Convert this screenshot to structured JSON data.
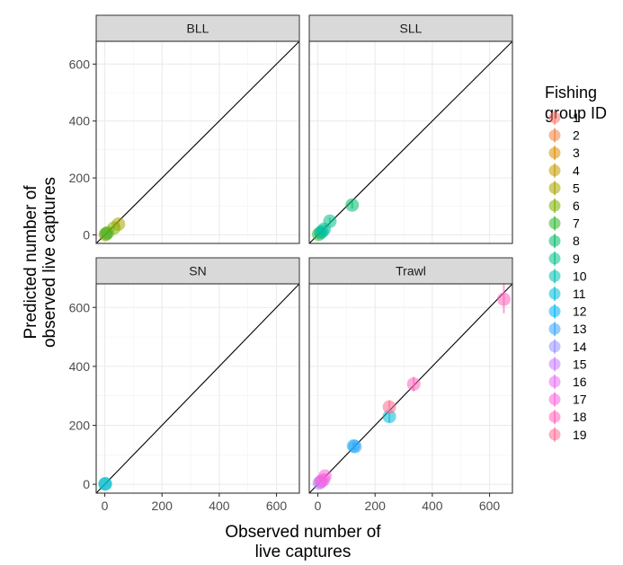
{
  "chart_data": {
    "type": "scatter",
    "facets": [
      "BLL",
      "SLL",
      "SN",
      "Trawl"
    ],
    "xlabel": [
      "Observed number of",
      "live captures"
    ],
    "ylabel": [
      "Predicted number of",
      "observed live captures"
    ],
    "xlim": [
      -30,
      680
    ],
    "ylim": [
      -30,
      680
    ],
    "x_ticks": [
      0,
      200,
      400,
      600
    ],
    "y_ticks": [
      0,
      200,
      400,
      600
    ],
    "reference_line": "y = x",
    "grid": true,
    "legend": {
      "title": [
        "Fishing",
        "group ID"
      ],
      "placement": "right",
      "entries": [
        "1",
        "2",
        "3",
        "4",
        "5",
        "6",
        "7",
        "8",
        "9",
        "10",
        "11",
        "12",
        "13",
        "14",
        "15",
        "16",
        "17",
        "18",
        "19"
      ],
      "colors": [
        "#F8766D",
        "#ED8141",
        "#DB8E00",
        "#C49A00",
        "#A8A400",
        "#7CAE00",
        "#2EB42E",
        "#00BA6A",
        "#00C08B",
        "#00C0B0",
        "#00BCD8",
        "#00B0F6",
        "#35A2FF",
        "#9590FF",
        "#C77CFF",
        "#E76BF3",
        "#FA62DB",
        "#FF62BC",
        "#FF6C91"
      ]
    },
    "facet_points": {
      "BLL": [
        {
          "group": "4",
          "x": 2,
          "y": 1,
          "lo": 0,
          "hi": 4
        },
        {
          "group": "5",
          "x": 48,
          "y": 38,
          "lo": 28,
          "hi": 48
        },
        {
          "group": "6",
          "x": 32,
          "y": 24,
          "lo": 16,
          "hi": 32
        },
        {
          "group": "6",
          "x": 10,
          "y": 8,
          "lo": 4,
          "hi": 12
        },
        {
          "group": "7",
          "x": 5,
          "y": 4,
          "lo": 1,
          "hi": 8
        }
      ],
      "SLL": [
        {
          "group": "7",
          "x": 3,
          "y": 2,
          "lo": 0,
          "hi": 5
        },
        {
          "group": "8",
          "x": 10,
          "y": 8,
          "lo": 4,
          "hi": 12
        },
        {
          "group": "8",
          "x": 120,
          "y": 105,
          "lo": 92,
          "hi": 118
        },
        {
          "group": "9",
          "x": 42,
          "y": 48,
          "lo": 36,
          "hi": 60
        },
        {
          "group": "9",
          "x": 22,
          "y": 20,
          "lo": 13,
          "hi": 27
        },
        {
          "group": "10",
          "x": 15,
          "y": 12,
          "lo": 7,
          "hi": 17
        }
      ],
      "SN": [
        {
          "group": "10",
          "x": 1,
          "y": 1,
          "lo": 0,
          "hi": 3
        },
        {
          "group": "11",
          "x": 2,
          "y": 2,
          "lo": 0,
          "hi": 4
        }
      ],
      "Trawl": [
        {
          "group": "11",
          "x": 250,
          "y": 230,
          "lo": 210,
          "hi": 250
        },
        {
          "group": "12",
          "x": 125,
          "y": 130,
          "lo": 118,
          "hi": 142
        },
        {
          "group": "13",
          "x": 130,
          "y": 128,
          "lo": 116,
          "hi": 140
        },
        {
          "group": "14",
          "x": 5,
          "y": 4,
          "lo": 1,
          "hi": 7
        },
        {
          "group": "15",
          "x": 12,
          "y": 10,
          "lo": 6,
          "hi": 14
        },
        {
          "group": "16",
          "x": 20,
          "y": 15,
          "lo": 10,
          "hi": 20
        },
        {
          "group": "17",
          "x": 25,
          "y": 28,
          "lo": 20,
          "hi": 36
        },
        {
          "group": "17",
          "x": 10,
          "y": 9,
          "lo": 5,
          "hi": 13
        },
        {
          "group": "18",
          "x": 335,
          "y": 340,
          "lo": 315,
          "hi": 365
        },
        {
          "group": "18",
          "x": 650,
          "y": 628,
          "lo": 580,
          "hi": 680
        },
        {
          "group": "19",
          "x": 250,
          "y": 262,
          "lo": 240,
          "hi": 285
        }
      ]
    }
  }
}
